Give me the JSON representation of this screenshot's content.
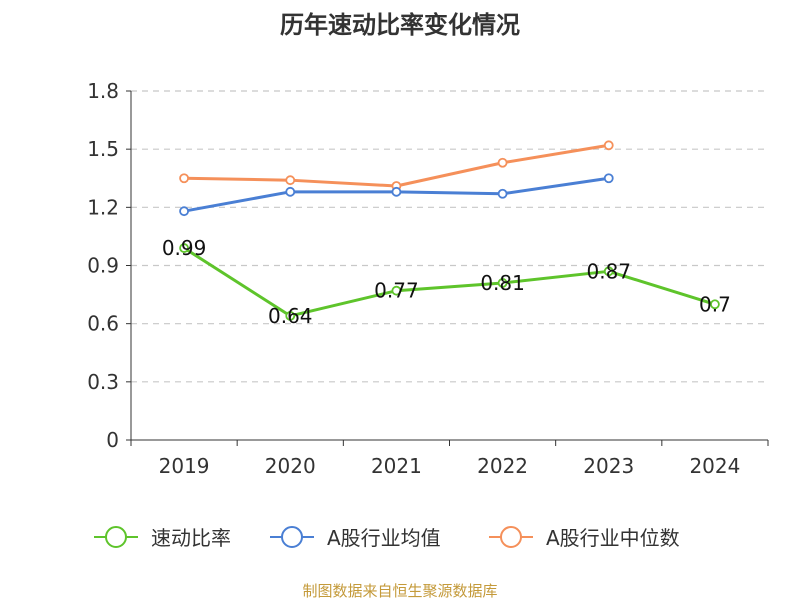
{
  "chart_data": {
    "type": "line",
    "title": "历年速动比率变化情况",
    "categories": [
      "2019",
      "2020",
      "2021",
      "2022",
      "2023",
      "2024"
    ],
    "ylim": [
      0,
      1.8
    ],
    "yticks": [
      "0",
      "0.3",
      "0.6",
      "0.9",
      "1.2",
      "1.5",
      "1.8"
    ],
    "grid": true,
    "legend_position": "bottom",
    "series": [
      {
        "name": "速动比率",
        "color": "#5ec42b",
        "show_labels": true,
        "values": [
          0.99,
          0.64,
          0.77,
          0.81,
          0.87,
          0.7
        ],
        "labels": [
          "0.99",
          "0.64",
          "0.77",
          "0.81",
          "0.87",
          "0.7"
        ]
      },
      {
        "name": "A股行业均值",
        "color": "#4a7fd4",
        "show_labels": false,
        "values": [
          1.18,
          1.28,
          1.28,
          1.27,
          1.35,
          null
        ]
      },
      {
        "name": "A股行业中位数",
        "color": "#f5905a",
        "show_labels": false,
        "values": [
          1.35,
          1.34,
          1.31,
          1.43,
          1.52,
          null
        ]
      }
    ]
  },
  "source": "制图数据来自恒生聚源数据库"
}
